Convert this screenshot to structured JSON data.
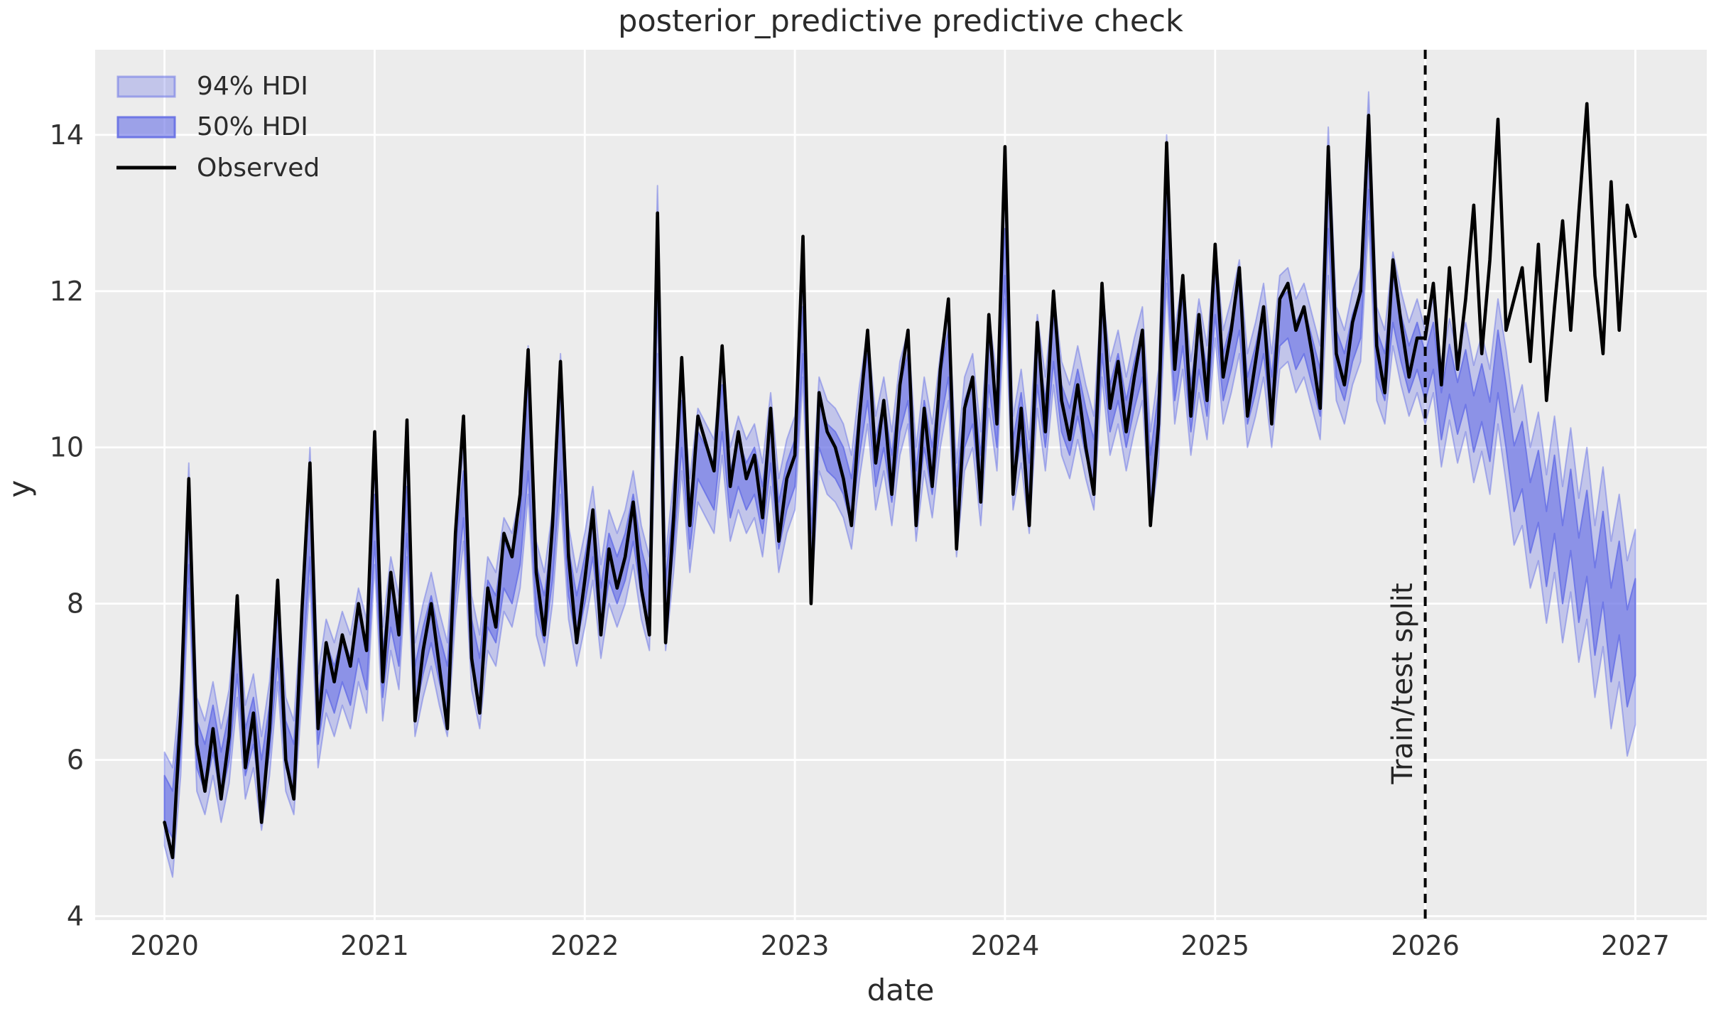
{
  "chart_data": {
    "type": "line",
    "title": "posterior_predictive predictive check",
    "xlabel": "date",
    "ylabel": "y",
    "x_ticks": [
      2020,
      2021,
      2022,
      2023,
      2024,
      2025,
      2026,
      2027
    ],
    "y_ticks": [
      4,
      6,
      8,
      10,
      12,
      14
    ],
    "xlim": [
      2019.67,
      2027.34
    ],
    "ylim": [
      3.95,
      15.09
    ],
    "grid": "white vertical and horizontal gridlines on light gray panel",
    "legend": {
      "position": "upper left",
      "entries": [
        {
          "label": "94% HDI",
          "type": "band",
          "color": "#6a73e5",
          "opacity": 0.32
        },
        {
          "label": "50% HDI",
          "type": "band",
          "color": "#6a73e5",
          "opacity": 0.62
        },
        {
          "label": "Observed",
          "type": "line",
          "color": "#000000"
        }
      ]
    },
    "split": {
      "x": 2026.0,
      "label": "Train/test split",
      "style": "black dashed vertical line"
    },
    "x": {
      "start": 2020.0,
      "end": 2027.0,
      "n": 183,
      "unit": "decimal years, evenly spaced weekly-to-biweekly samples"
    },
    "series": {
      "observed": [
        5.2,
        4.75,
        6.6,
        9.6,
        6.2,
        5.6,
        6.4,
        5.5,
        6.3,
        8.1,
        5.9,
        6.6,
        5.2,
        6.4,
        8.3,
        6.0,
        5.5,
        7.9,
        9.8,
        6.4,
        7.5,
        7.0,
        7.6,
        7.2,
        8.0,
        7.4,
        10.2,
        7.0,
        8.4,
        7.6,
        10.35,
        6.5,
        7.4,
        8.0,
        7.2,
        6.4,
        8.9,
        10.4,
        7.3,
        6.6,
        8.2,
        7.7,
        8.9,
        8.6,
        9.4,
        11.25,
        8.4,
        7.6,
        9.0,
        11.1,
        8.6,
        7.5,
        8.3,
        9.2,
        7.6,
        8.7,
        8.2,
        8.6,
        9.3,
        8.2,
        7.6,
        13.0,
        7.5,
        9.1,
        11.15,
        9.0,
        10.4,
        10.05,
        9.7,
        11.3,
        9.5,
        10.2,
        9.6,
        9.9,
        9.1,
        10.5,
        8.8,
        9.6,
        9.9,
        12.7,
        8.0,
        10.7,
        10.2,
        10.0,
        9.6,
        9.0,
        10.4,
        11.5,
        9.8,
        10.6,
        9.4,
        10.8,
        11.5,
        9.0,
        10.5,
        9.5,
        11.0,
        11.9,
        8.7,
        10.5,
        10.9,
        9.3,
        11.7,
        10.3,
        13.85,
        9.4,
        10.5,
        9.0,
        11.6,
        10.2,
        12.0,
        10.6,
        10.1,
        10.8,
        10.0,
        9.4,
        12.1,
        10.5,
        11.1,
        10.2,
        10.9,
        11.5,
        9.0,
        10.3,
        13.9,
        11.0,
        12.2,
        10.4,
        11.7,
        10.6,
        12.6,
        10.9,
        11.5,
        12.3,
        10.4,
        11.1,
        11.8,
        10.3,
        11.9,
        12.1,
        11.5,
        11.8,
        11.2,
        10.5,
        13.85,
        11.2,
        10.8,
        11.6,
        12.0,
        14.25,
        11.3,
        10.7,
        12.4,
        11.6,
        10.9,
        11.4,
        11.4,
        12.1,
        10.8,
        12.3,
        11.0,
        11.9,
        13.1,
        11.2,
        12.4,
        14.2,
        11.5,
        11.9,
        12.3,
        11.1,
        12.6,
        10.6,
        11.8,
        12.9,
        11.5,
        13.0,
        14.4,
        12.2,
        11.2,
        13.4,
        11.5,
        13.1,
        12.7
      ],
      "hdi94_lower": [
        4.9,
        4.5,
        5.8,
        8.2,
        5.6,
        5.3,
        5.8,
        5.2,
        5.7,
        6.8,
        5.5,
        5.9,
        5.1,
        5.8,
        7.0,
        5.6,
        5.3,
        6.8,
        8.3,
        5.9,
        6.6,
        6.3,
        6.7,
        6.4,
        7.0,
        6.6,
        8.5,
        6.5,
        7.4,
        6.9,
        8.6,
        6.3,
        6.8,
        7.2,
        6.7,
        6.3,
        7.8,
        8.8,
        6.9,
        6.4,
        7.4,
        7.2,
        7.9,
        7.7,
        8.2,
        9.4,
        7.6,
        7.2,
        8.0,
        9.4,
        7.8,
        7.2,
        7.7,
        8.3,
        7.3,
        8.0,
        7.7,
        8.0,
        8.5,
        7.8,
        7.4,
        11.2,
        7.4,
        8.4,
        9.7,
        8.4,
        9.3,
        9.1,
        8.9,
        9.9,
        8.8,
        9.2,
        8.9,
        9.1,
        8.6,
        9.5,
        8.4,
        8.9,
        9.2,
        10.9,
        8.0,
        9.7,
        9.4,
        9.3,
        9.1,
        8.7,
        9.6,
        10.3,
        9.2,
        9.7,
        9.0,
        9.9,
        10.3,
        8.8,
        9.7,
        9.1,
        10.0,
        10.6,
        8.6,
        9.7,
        10.0,
        9.0,
        10.5,
        9.7,
        11.9,
        9.2,
        9.8,
        8.9,
        10.5,
        9.7,
        10.8,
        9.9,
        9.6,
        10.1,
        9.6,
        9.2,
        10.9,
        9.9,
        10.3,
        9.7,
        10.2,
        10.6,
        9.0,
        9.8,
        12.1,
        10.3,
        11.0,
        9.9,
        10.7,
        10.1,
        11.4,
        10.3,
        10.7,
        11.2,
        10.0,
        10.4,
        10.9,
        10.0,
        11.0,
        11.1,
        10.7,
        10.9,
        10.5,
        10.1,
        12.2,
        10.6,
        10.3,
        10.8,
        11.1,
        12.9,
        10.6,
        10.3,
        11.3,
        10.8,
        10.4,
        10.7,
        10.3,
        10.7,
        9.75,
        10.35,
        9.8,
        10.2,
        9.55,
        9.95,
        9.4,
        10.3,
        9.55,
        8.75,
        9.0,
        8.2,
        8.55,
        7.75,
        8.4,
        7.5,
        8.15,
        7.25,
        7.8,
        6.8,
        7.45,
        6.4,
        7.0,
        6.05,
        6.45
      ],
      "hdi94_upper": [
        6.1,
        5.9,
        7.0,
        9.8,
        6.8,
        6.5,
        7.0,
        6.4,
        6.9,
        8.0,
        6.7,
        7.1,
        6.3,
        7.0,
        8.2,
        6.8,
        6.5,
        8.0,
        10.0,
        7.1,
        7.8,
        7.5,
        7.9,
        7.6,
        8.2,
        7.8,
        9.7,
        7.7,
        8.6,
        8.1,
        9.8,
        7.5,
        8.0,
        8.4,
        7.9,
        7.5,
        9.0,
        10.0,
        8.1,
        7.6,
        8.6,
        8.4,
        9.1,
        8.9,
        9.4,
        11.3,
        8.8,
        8.4,
        9.2,
        11.2,
        9.0,
        8.4,
        8.9,
        9.5,
        8.5,
        9.2,
        8.9,
        9.2,
        9.7,
        9.0,
        8.6,
        13.35,
        8.6,
        9.6,
        10.9,
        9.6,
        10.5,
        10.3,
        10.1,
        11.1,
        10.0,
        10.4,
        10.1,
        10.3,
        9.8,
        10.7,
        9.6,
        10.1,
        10.4,
        12.1,
        9.2,
        10.9,
        10.6,
        10.5,
        10.3,
        9.9,
        10.8,
        11.5,
        10.4,
        10.9,
        10.2,
        11.1,
        11.5,
        10.0,
        10.9,
        10.3,
        11.2,
        11.8,
        9.8,
        10.9,
        11.2,
        10.2,
        11.7,
        10.9,
        13.5,
        10.4,
        11.0,
        10.1,
        11.7,
        10.9,
        12.0,
        11.1,
        10.8,
        11.3,
        10.8,
        10.4,
        12.1,
        11.1,
        11.5,
        10.9,
        11.4,
        11.8,
        10.2,
        11.0,
        14.0,
        11.5,
        12.2,
        11.1,
        11.9,
        11.3,
        12.6,
        11.5,
        11.9,
        12.4,
        11.2,
        11.6,
        12.1,
        11.2,
        12.2,
        12.3,
        11.9,
        12.1,
        11.7,
        11.3,
        14.1,
        11.8,
        11.5,
        12.0,
        12.3,
        14.55,
        11.8,
        11.5,
        12.5,
        12.0,
        11.6,
        11.9,
        11.5,
        11.9,
        11.05,
        11.65,
        11.2,
        11.6,
        11.05,
        11.45,
        11.0,
        11.9,
        11.25,
        10.45,
        10.8,
        10.0,
        10.45,
        9.65,
        10.4,
        9.5,
        10.25,
        9.35,
        10.0,
        9.0,
        9.75,
        8.8,
        9.4,
        8.55,
        8.95
      ],
      "hdi50_lower": [
        5.2,
        5.0,
        6.1,
        8.5,
        5.9,
        5.6,
        6.1,
        5.5,
        6.0,
        7.1,
        5.8,
        6.2,
        5.4,
        6.1,
        7.3,
        5.9,
        5.6,
        7.1,
        8.6,
        6.2,
        6.9,
        6.6,
        7.0,
        6.7,
        7.3,
        6.9,
        8.8,
        6.8,
        7.7,
        7.2,
        8.9,
        6.6,
        7.1,
        7.5,
        7.0,
        6.6,
        8.1,
        9.1,
        7.2,
        6.7,
        7.7,
        7.5,
        8.2,
        8.0,
        8.5,
        9.7,
        7.9,
        7.5,
        8.3,
        9.7,
        8.1,
        7.5,
        8.0,
        8.6,
        7.6,
        8.3,
        8.0,
        8.3,
        8.8,
        8.1,
        7.7,
        11.9,
        7.7,
        8.7,
        10.0,
        8.7,
        9.6,
        9.4,
        9.2,
        10.2,
        9.1,
        9.5,
        9.2,
        9.4,
        8.9,
        9.8,
        8.7,
        9.2,
        9.5,
        11.2,
        8.3,
        10.0,
        9.7,
        9.6,
        9.4,
        9.0,
        9.9,
        10.6,
        9.5,
        10.0,
        9.3,
        10.2,
        10.6,
        9.1,
        10.0,
        9.4,
        10.3,
        10.9,
        8.9,
        10.0,
        10.3,
        9.3,
        10.8,
        10.0,
        12.2,
        9.5,
        10.1,
        9.2,
        10.8,
        10.0,
        11.1,
        10.2,
        9.9,
        10.4,
        9.9,
        9.5,
        11.2,
        10.2,
        10.6,
        10.0,
        10.5,
        10.9,
        9.3,
        10.1,
        12.4,
        10.6,
        11.3,
        10.2,
        11.0,
        10.4,
        11.7,
        10.6,
        11.0,
        11.5,
        10.3,
        10.7,
        11.2,
        10.3,
        11.3,
        11.4,
        11.0,
        11.2,
        10.8,
        10.4,
        12.8,
        10.9,
        10.6,
        11.1,
        11.4,
        13.3,
        10.9,
        10.6,
        11.6,
        11.1,
        10.7,
        11.0,
        10.6,
        11.0,
        10.1,
        10.68,
        10.17,
        10.55,
        9.94,
        10.33,
        9.82,
        10.7,
        10.0,
        9.18,
        9.47,
        8.65,
        9.04,
        8.22,
        8.9,
        8.0,
        8.68,
        7.76,
        8.35,
        7.34,
        8.02,
        7.0,
        7.6,
        6.68,
        7.08
      ],
      "hdi50_upper": [
        5.8,
        5.6,
        6.7,
        9.3,
        6.5,
        6.2,
        6.7,
        6.1,
        6.6,
        7.7,
        6.4,
        6.8,
        6.0,
        6.7,
        7.9,
        6.5,
        6.2,
        7.7,
        9.6,
        6.8,
        7.5,
        7.2,
        7.6,
        7.3,
        7.9,
        7.5,
        9.4,
        7.4,
        8.3,
        7.8,
        9.5,
        7.2,
        7.7,
        8.1,
        7.6,
        7.2,
        8.7,
        9.7,
        7.8,
        7.3,
        8.3,
        8.1,
        8.8,
        8.6,
        9.1,
        10.9,
        8.5,
        8.1,
        8.9,
        10.8,
        8.7,
        8.1,
        8.6,
        9.2,
        8.2,
        8.9,
        8.6,
        8.9,
        9.4,
        8.7,
        8.3,
        12.8,
        8.3,
        9.3,
        10.6,
        9.3,
        10.2,
        10.0,
        9.8,
        10.8,
        9.7,
        10.1,
        9.8,
        10.0,
        9.5,
        10.4,
        9.3,
        9.8,
        10.1,
        11.8,
        8.9,
        10.6,
        10.3,
        10.2,
        10.0,
        9.6,
        10.5,
        11.2,
        10.1,
        10.6,
        9.9,
        10.8,
        11.2,
        9.7,
        10.6,
        10.0,
        10.9,
        11.5,
        9.5,
        10.6,
        10.9,
        9.9,
        11.4,
        10.6,
        12.8,
        10.1,
        10.7,
        9.8,
        11.4,
        10.6,
        11.7,
        10.8,
        10.5,
        11.0,
        10.5,
        10.1,
        11.8,
        10.8,
        11.2,
        10.6,
        11.1,
        11.5,
        9.9,
        10.7,
        13.5,
        11.2,
        11.9,
        10.8,
        11.6,
        11.0,
        12.3,
        11.2,
        11.6,
        12.1,
        10.9,
        11.3,
        11.8,
        10.9,
        11.9,
        12.0,
        11.6,
        11.8,
        11.4,
        11.0,
        13.6,
        11.5,
        11.2,
        11.7,
        12.0,
        14.0,
        11.5,
        11.2,
        12.2,
        11.7,
        11.3,
        11.6,
        11.2,
        11.6,
        10.7,
        11.32,
        10.83,
        11.25,
        10.66,
        11.07,
        10.58,
        11.5,
        10.8,
        10.02,
        10.33,
        9.55,
        9.96,
        9.18,
        9.9,
        9.0,
        9.72,
        8.84,
        9.45,
        8.46,
        9.18,
        8.2,
        8.8,
        7.92,
        8.32
      ]
    },
    "colors": {
      "band_base": "#6a73e5",
      "observed": "#000000",
      "split_line": "#000000",
      "background": "#ececec",
      "grid": "#ffffff",
      "text": "#2b2b2b"
    }
  }
}
